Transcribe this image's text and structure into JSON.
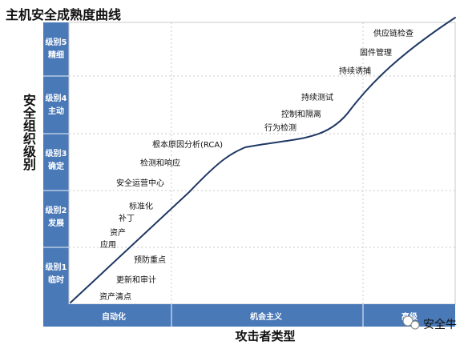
{
  "chart_data": {
    "type": "line",
    "title": "主机安全成熟度曲线",
    "ylabel": "安全组织级别",
    "xlabel": "攻击者类型",
    "levels": [
      {
        "name": "级别1",
        "desc": "临时"
      },
      {
        "name": "级别2",
        "desc": "发展"
      },
      {
        "name": "级别3",
        "desc": "确定"
      },
      {
        "name": "级别4",
        "desc": "主动"
      },
      {
        "name": "级别5",
        "desc": "精细"
      }
    ],
    "attacker_types": [
      "自动化",
      "机会主义",
      "高级"
    ],
    "curve_shape": "s-curve",
    "annotations": [
      "资产清点",
      "更新和审计",
      "预防重点",
      "应用",
      "资产",
      "补丁",
      "标准化",
      "安全运营中心",
      "检测和响应",
      "根本原因分析(RCA)",
      "行为检测",
      "控制和隔离",
      "持续测试",
      "持续诱捕",
      "固件管理",
      "供应链检查"
    ],
    "grid": true,
    "colors": {
      "band": "#4a79b8",
      "curve": "#1f3864",
      "grid": "#c9c9c9"
    }
  },
  "watermark": {
    "text": "安全牛",
    "icon": "wechat-icon"
  }
}
